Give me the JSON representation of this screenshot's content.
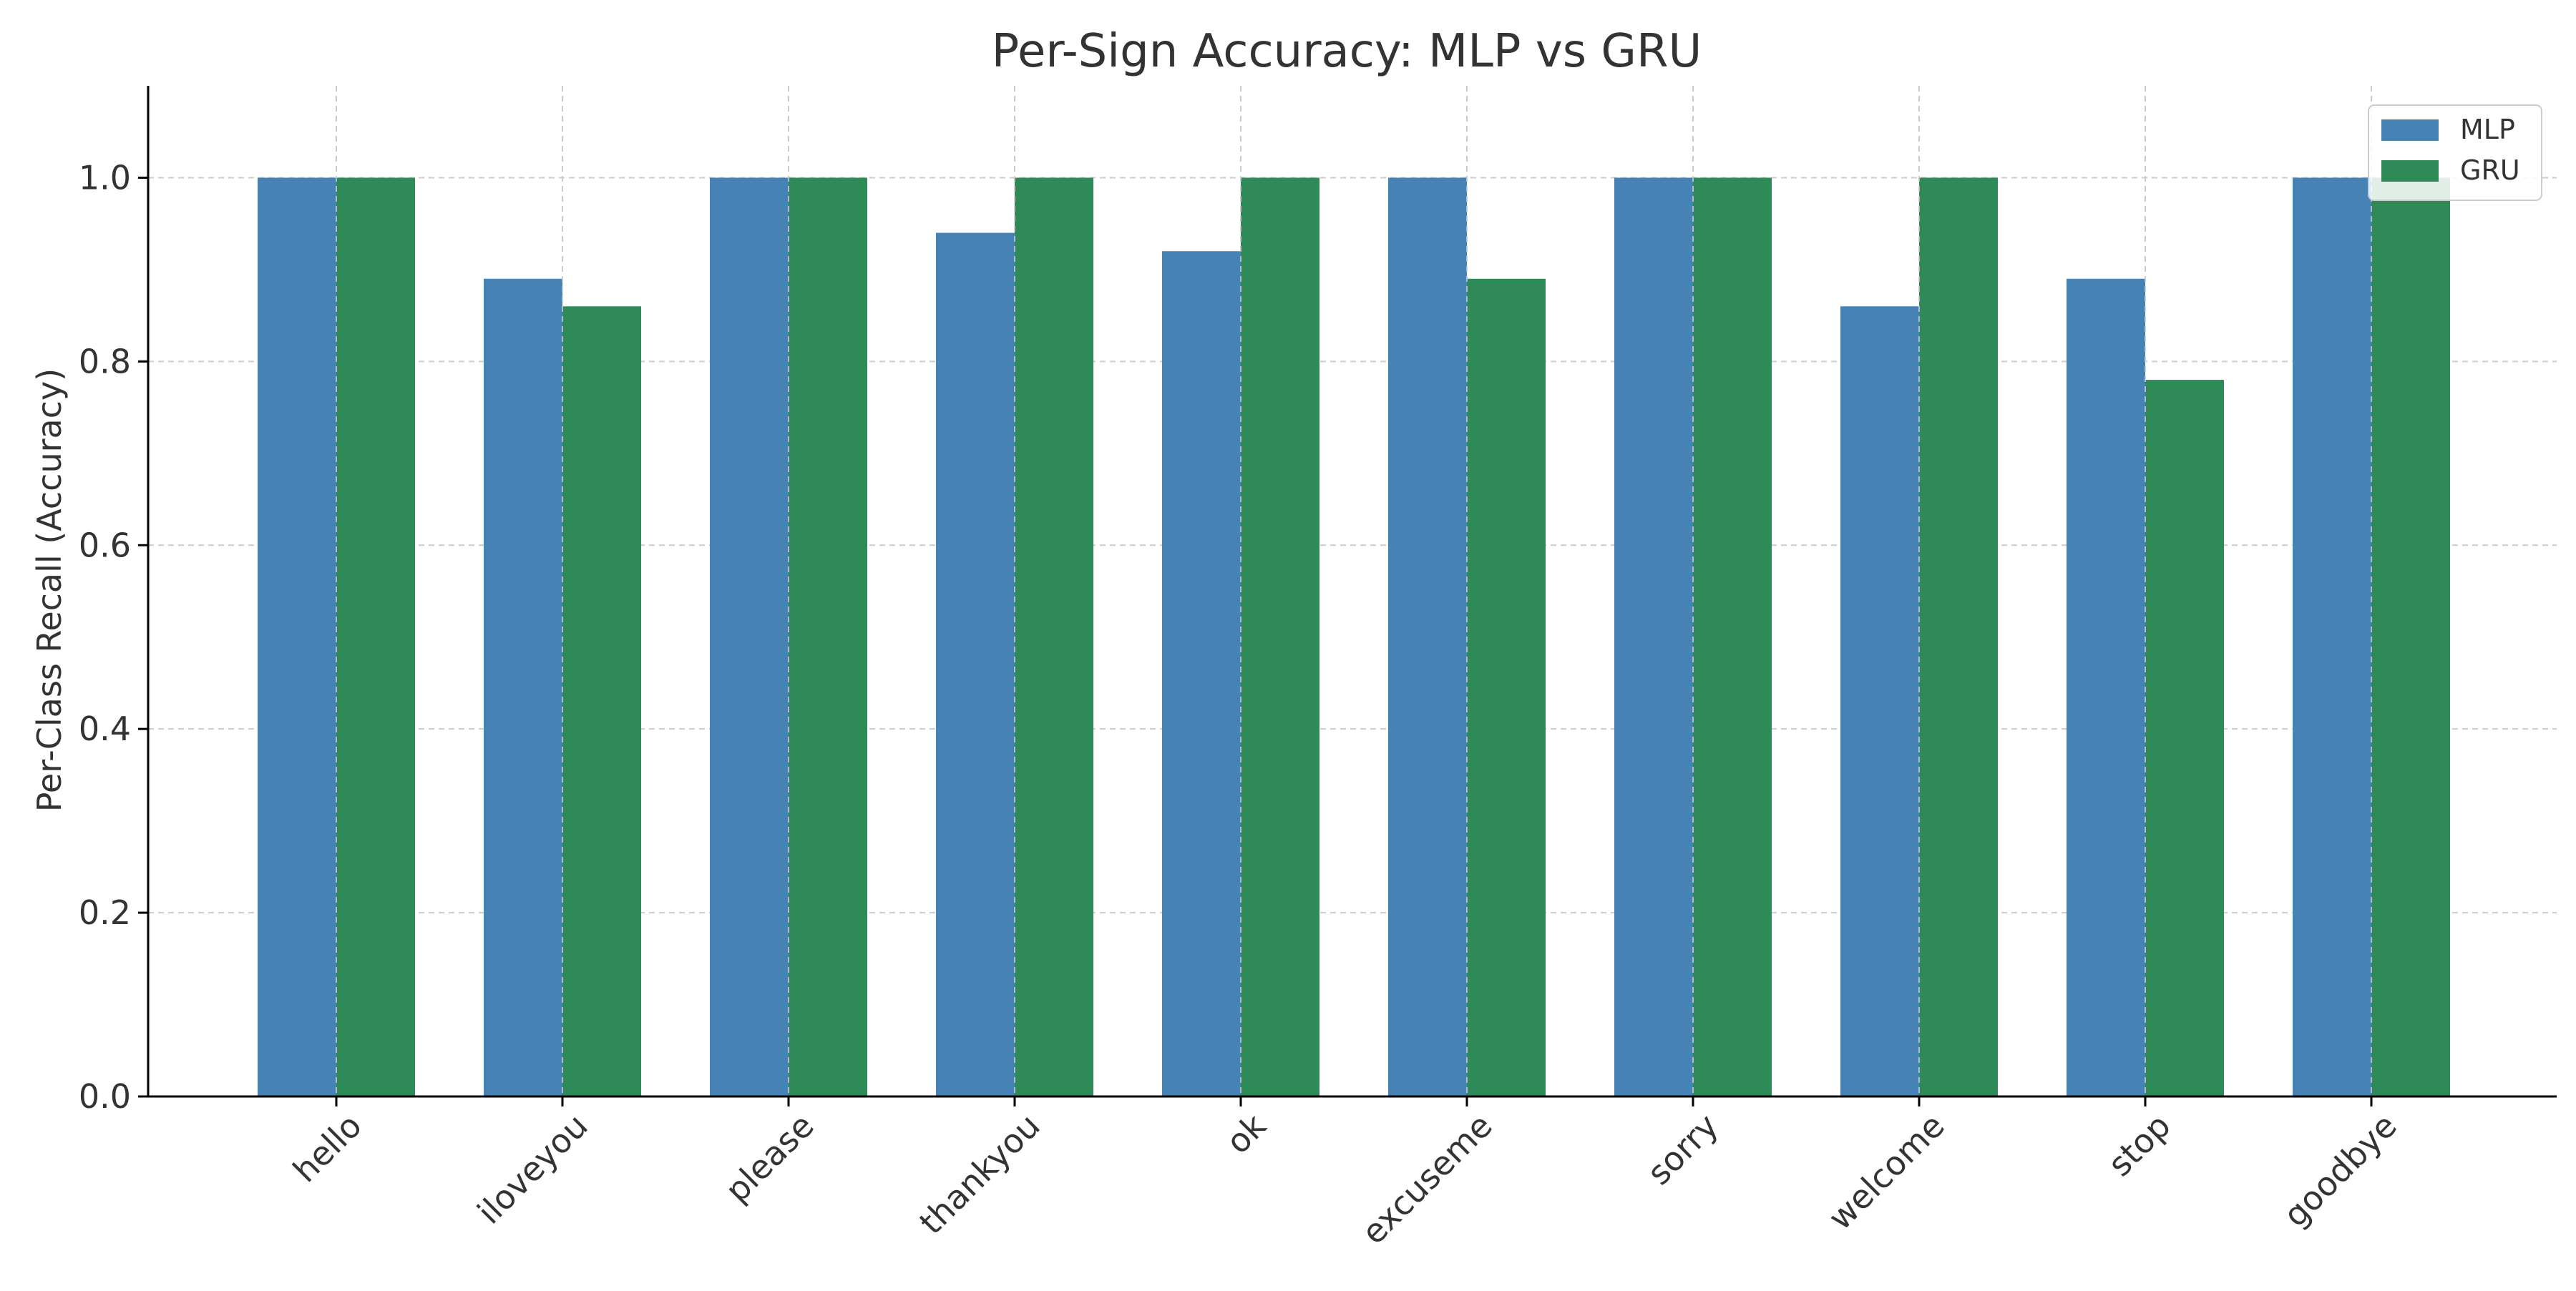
{
  "chart_data": {
    "type": "bar",
    "title": "Per-Sign Accuracy: MLP vs GRU",
    "xlabel": "",
    "ylabel": "Per-Class Recall (Accuracy)",
    "categories": [
      "hello",
      "iloveyou",
      "please",
      "thankyou",
      "ok",
      "excuseme",
      "sorry",
      "welcome",
      "stop",
      "goodbye"
    ],
    "series": [
      {
        "name": "MLP",
        "color": "#4682b4",
        "values": [
          1.0,
          0.89,
          1.0,
          0.94,
          0.92,
          1.0,
          1.0,
          0.86,
          0.89,
          1.0
        ]
      },
      {
        "name": "GRU",
        "color": "#2e8b57",
        "values": [
          1.0,
          0.86,
          1.0,
          1.0,
          1.0,
          0.89,
          1.0,
          1.0,
          0.78,
          1.0
        ]
      }
    ],
    "ylim": [
      0,
      1.1
    ],
    "yticks": [
      "0.0",
      "0.2",
      "0.4",
      "0.6",
      "0.8",
      "1.0"
    ],
    "grid": true,
    "legend": "top-right"
  }
}
